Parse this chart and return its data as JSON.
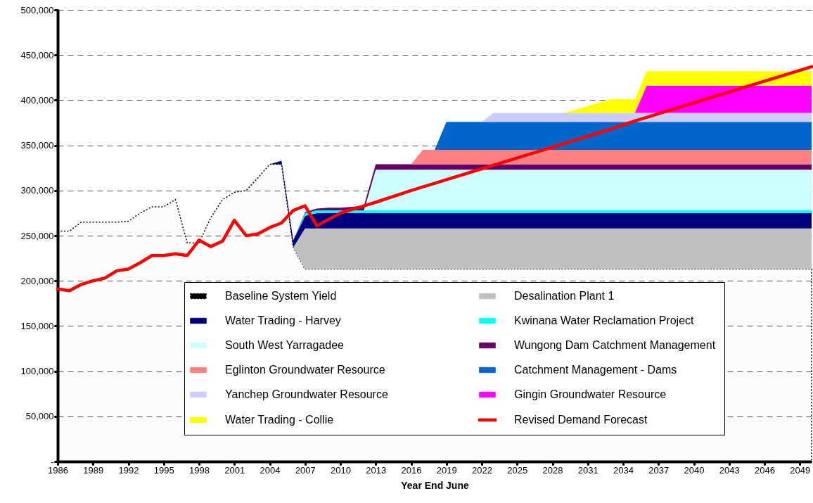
{
  "chart_data": {
    "type": "area",
    "stacked": true,
    "xlabel": "Year End June",
    "xlim": [
      1986,
      2050
    ],
    "xticks": [
      1986,
      1989,
      1992,
      1995,
      1998,
      2001,
      2004,
      2007,
      2010,
      2013,
      2016,
      2019,
      2022,
      2025,
      2028,
      2031,
      2034,
      2037,
      2040,
      2043,
      2046,
      2049
    ],
    "ylim": [
      0,
      500000
    ],
    "yticks": [
      {
        "value": 0,
        "label": "-"
      },
      {
        "value": 50000,
        "label": "50,000"
      },
      {
        "value": 100000,
        "label": "100,000"
      },
      {
        "value": 150000,
        "label": "150,000"
      },
      {
        "value": 200000,
        "label": "200,000"
      },
      {
        "value": 250000,
        "label": "250,000"
      },
      {
        "value": 300000,
        "label": "300,000"
      },
      {
        "value": 350000,
        "label": "350,000"
      },
      {
        "value": 400000,
        "label": "400,000"
      },
      {
        "value": 450000,
        "label": "450,000"
      },
      {
        "value": 500000,
        "label": "500,000"
      }
    ],
    "grid": "y",
    "legend": "bottom",
    "marker": "none",
    "x": [
      1986,
      1987,
      1988,
      1989,
      1990,
      1991,
      1992,
      1993,
      1994,
      1995,
      1996,
      1997,
      1998,
      1999,
      2000,
      2001,
      2002,
      2003,
      2004,
      2005,
      2006,
      2007,
      2008,
      2009,
      2010,
      2011,
      2012,
      2013,
      2016,
      2017,
      2018,
      2019,
      2022,
      2023,
      2029,
      2033,
      2035,
      2036,
      2050
    ],
    "series": [
      {
        "name": "Baseline System Yield",
        "type": "area",
        "line_style": "dotted",
        "color": "#000000",
        "values": [
          255000,
          255000,
          265000,
          265000,
          265000,
          265000,
          266000,
          275000,
          282000,
          282000,
          290000,
          242000,
          242000,
          270000,
          290000,
          298000,
          300000,
          314000,
          329000,
          329000,
          237000,
          213000,
          213000,
          213000,
          213000,
          213000,
          213000,
          213000,
          213000,
          213000,
          213000,
          213000,
          213000,
          213000,
          213000,
          213000,
          213000,
          213000,
          213000
        ]
      },
      {
        "name": "Desalination Plant 1",
        "color": "#c0c0c0",
        "values": [
          null,
          null,
          null,
          null,
          null,
          null,
          null,
          null,
          null,
          null,
          null,
          null,
          null,
          null,
          null,
          null,
          null,
          null,
          null,
          null,
          0,
          45000,
          45000,
          45000,
          45000,
          45000,
          45000,
          45000,
          45000,
          45000,
          45000,
          45000,
          45000,
          45000,
          45000,
          45000,
          45000,
          45000,
          45000
        ]
      },
      {
        "name": "Water Trading - Harvey",
        "color": "#000080",
        "values": [
          null,
          null,
          null,
          null,
          null,
          null,
          null,
          null,
          null,
          null,
          null,
          null,
          null,
          null,
          null,
          null,
          null,
          null,
          0,
          4000,
          8000,
          14000,
          17000,
          17000,
          17000,
          17000,
          17000,
          17000,
          17000,
          17000,
          17000,
          17000,
          17000,
          17000,
          17000,
          17000,
          17000,
          17000,
          17000
        ]
      },
      {
        "name": "Kwinana Water Reclamation Project",
        "color": "#00ffff",
        "values": [
          null,
          null,
          null,
          null,
          null,
          null,
          null,
          null,
          null,
          null,
          null,
          null,
          null,
          null,
          null,
          null,
          null,
          null,
          null,
          null,
          0,
          3000,
          3000,
          3000,
          3000,
          3000,
          3000,
          3000,
          3000,
          3000,
          3000,
          3000,
          3000,
          3000,
          3000,
          3000,
          3000,
          3000,
          3000
        ]
      },
      {
        "name": "South West Yarragadee",
        "color": "#ccffff",
        "values": [
          null,
          null,
          null,
          null,
          null,
          null,
          null,
          null,
          null,
          null,
          null,
          null,
          null,
          null,
          null,
          null,
          null,
          null,
          null,
          null,
          null,
          null,
          null,
          null,
          null,
          null,
          0,
          45000,
          45000,
          45000,
          45000,
          45000,
          45000,
          45000,
          45000,
          45000,
          45000,
          45000,
          45000
        ]
      },
      {
        "name": "Wungong Dam Catchment Management",
        "color": "#660066",
        "values": [
          null,
          null,
          null,
          null,
          null,
          null,
          null,
          null,
          null,
          null,
          null,
          null,
          null,
          null,
          null,
          null,
          null,
          null,
          null,
          null,
          0,
          1000,
          2000,
          3000,
          3000,
          4000,
          5000,
          6000,
          6000,
          6000,
          6000,
          6000,
          6000,
          6000,
          6000,
          6000,
          6000,
          6000,
          6000
        ]
      },
      {
        "name": "Eglinton Groundwater Resource",
        "color": "#ff8080",
        "values": [
          null,
          null,
          null,
          null,
          null,
          null,
          null,
          null,
          null,
          null,
          null,
          null,
          null,
          null,
          null,
          null,
          null,
          null,
          null,
          null,
          null,
          null,
          null,
          null,
          null,
          null,
          null,
          null,
          0,
          16000,
          16000,
          16000,
          16000,
          16000,
          16000,
          16000,
          16000,
          16000,
          16000
        ]
      },
      {
        "name": "Catchment Management - Dams",
        "color": "#0066cc",
        "values": [
          null,
          null,
          null,
          null,
          null,
          null,
          null,
          null,
          null,
          null,
          null,
          null,
          null,
          null,
          null,
          null,
          null,
          null,
          null,
          null,
          null,
          null,
          null,
          null,
          null,
          null,
          null,
          null,
          null,
          null,
          0,
          31000,
          31000,
          31000,
          31000,
          31000,
          31000,
          31000,
          31000
        ]
      },
      {
        "name": "Yanchep Groundwater Resource",
        "color": "#ccccff",
        "values": [
          null,
          null,
          null,
          null,
          null,
          null,
          null,
          null,
          null,
          null,
          null,
          null,
          null,
          null,
          null,
          null,
          null,
          null,
          null,
          null,
          null,
          null,
          null,
          null,
          null,
          null,
          null,
          null,
          null,
          null,
          null,
          null,
          0,
          10000,
          10000,
          10000,
          10000,
          10000,
          10000
        ]
      },
      {
        "name": "Gingin Groundwater Resource",
        "color": "#ff00ff",
        "values": [
          null,
          null,
          null,
          null,
          null,
          null,
          null,
          null,
          null,
          null,
          null,
          null,
          null,
          null,
          null,
          null,
          null,
          null,
          null,
          null,
          null,
          null,
          null,
          null,
          null,
          null,
          null,
          null,
          null,
          null,
          null,
          null,
          null,
          null,
          null,
          null,
          0,
          30000,
          30000
        ]
      },
      {
        "name": "Water Trading - Collie",
        "color": "#ffff00",
        "values": [
          null,
          null,
          null,
          null,
          null,
          null,
          null,
          null,
          null,
          null,
          null,
          null,
          null,
          null,
          null,
          null,
          null,
          null,
          null,
          null,
          null,
          null,
          null,
          null,
          null,
          null,
          null,
          null,
          null,
          null,
          null,
          null,
          null,
          null,
          0,
          15000,
          15000,
          16000,
          16000
        ]
      },
      {
        "name": "Revised Demand Forecast",
        "type": "line",
        "line_style": "solid",
        "color": "#ff0000",
        "values": [
          191000,
          189000,
          196000,
          200000,
          203000,
          211000,
          213000,
          220000,
          228000,
          228000,
          230000,
          228000,
          245000,
          238000,
          244000,
          267000,
          250000,
          252000,
          259000,
          264000,
          278000,
          283000,
          261000,
          268000,
          275000,
          279000,
          283000,
          287000,
          300000,
          304000,
          308000,
          312000,
          324000,
          328000,
          352000,
          368000,
          377000,
          381000,
          437000
        ]
      }
    ]
  }
}
